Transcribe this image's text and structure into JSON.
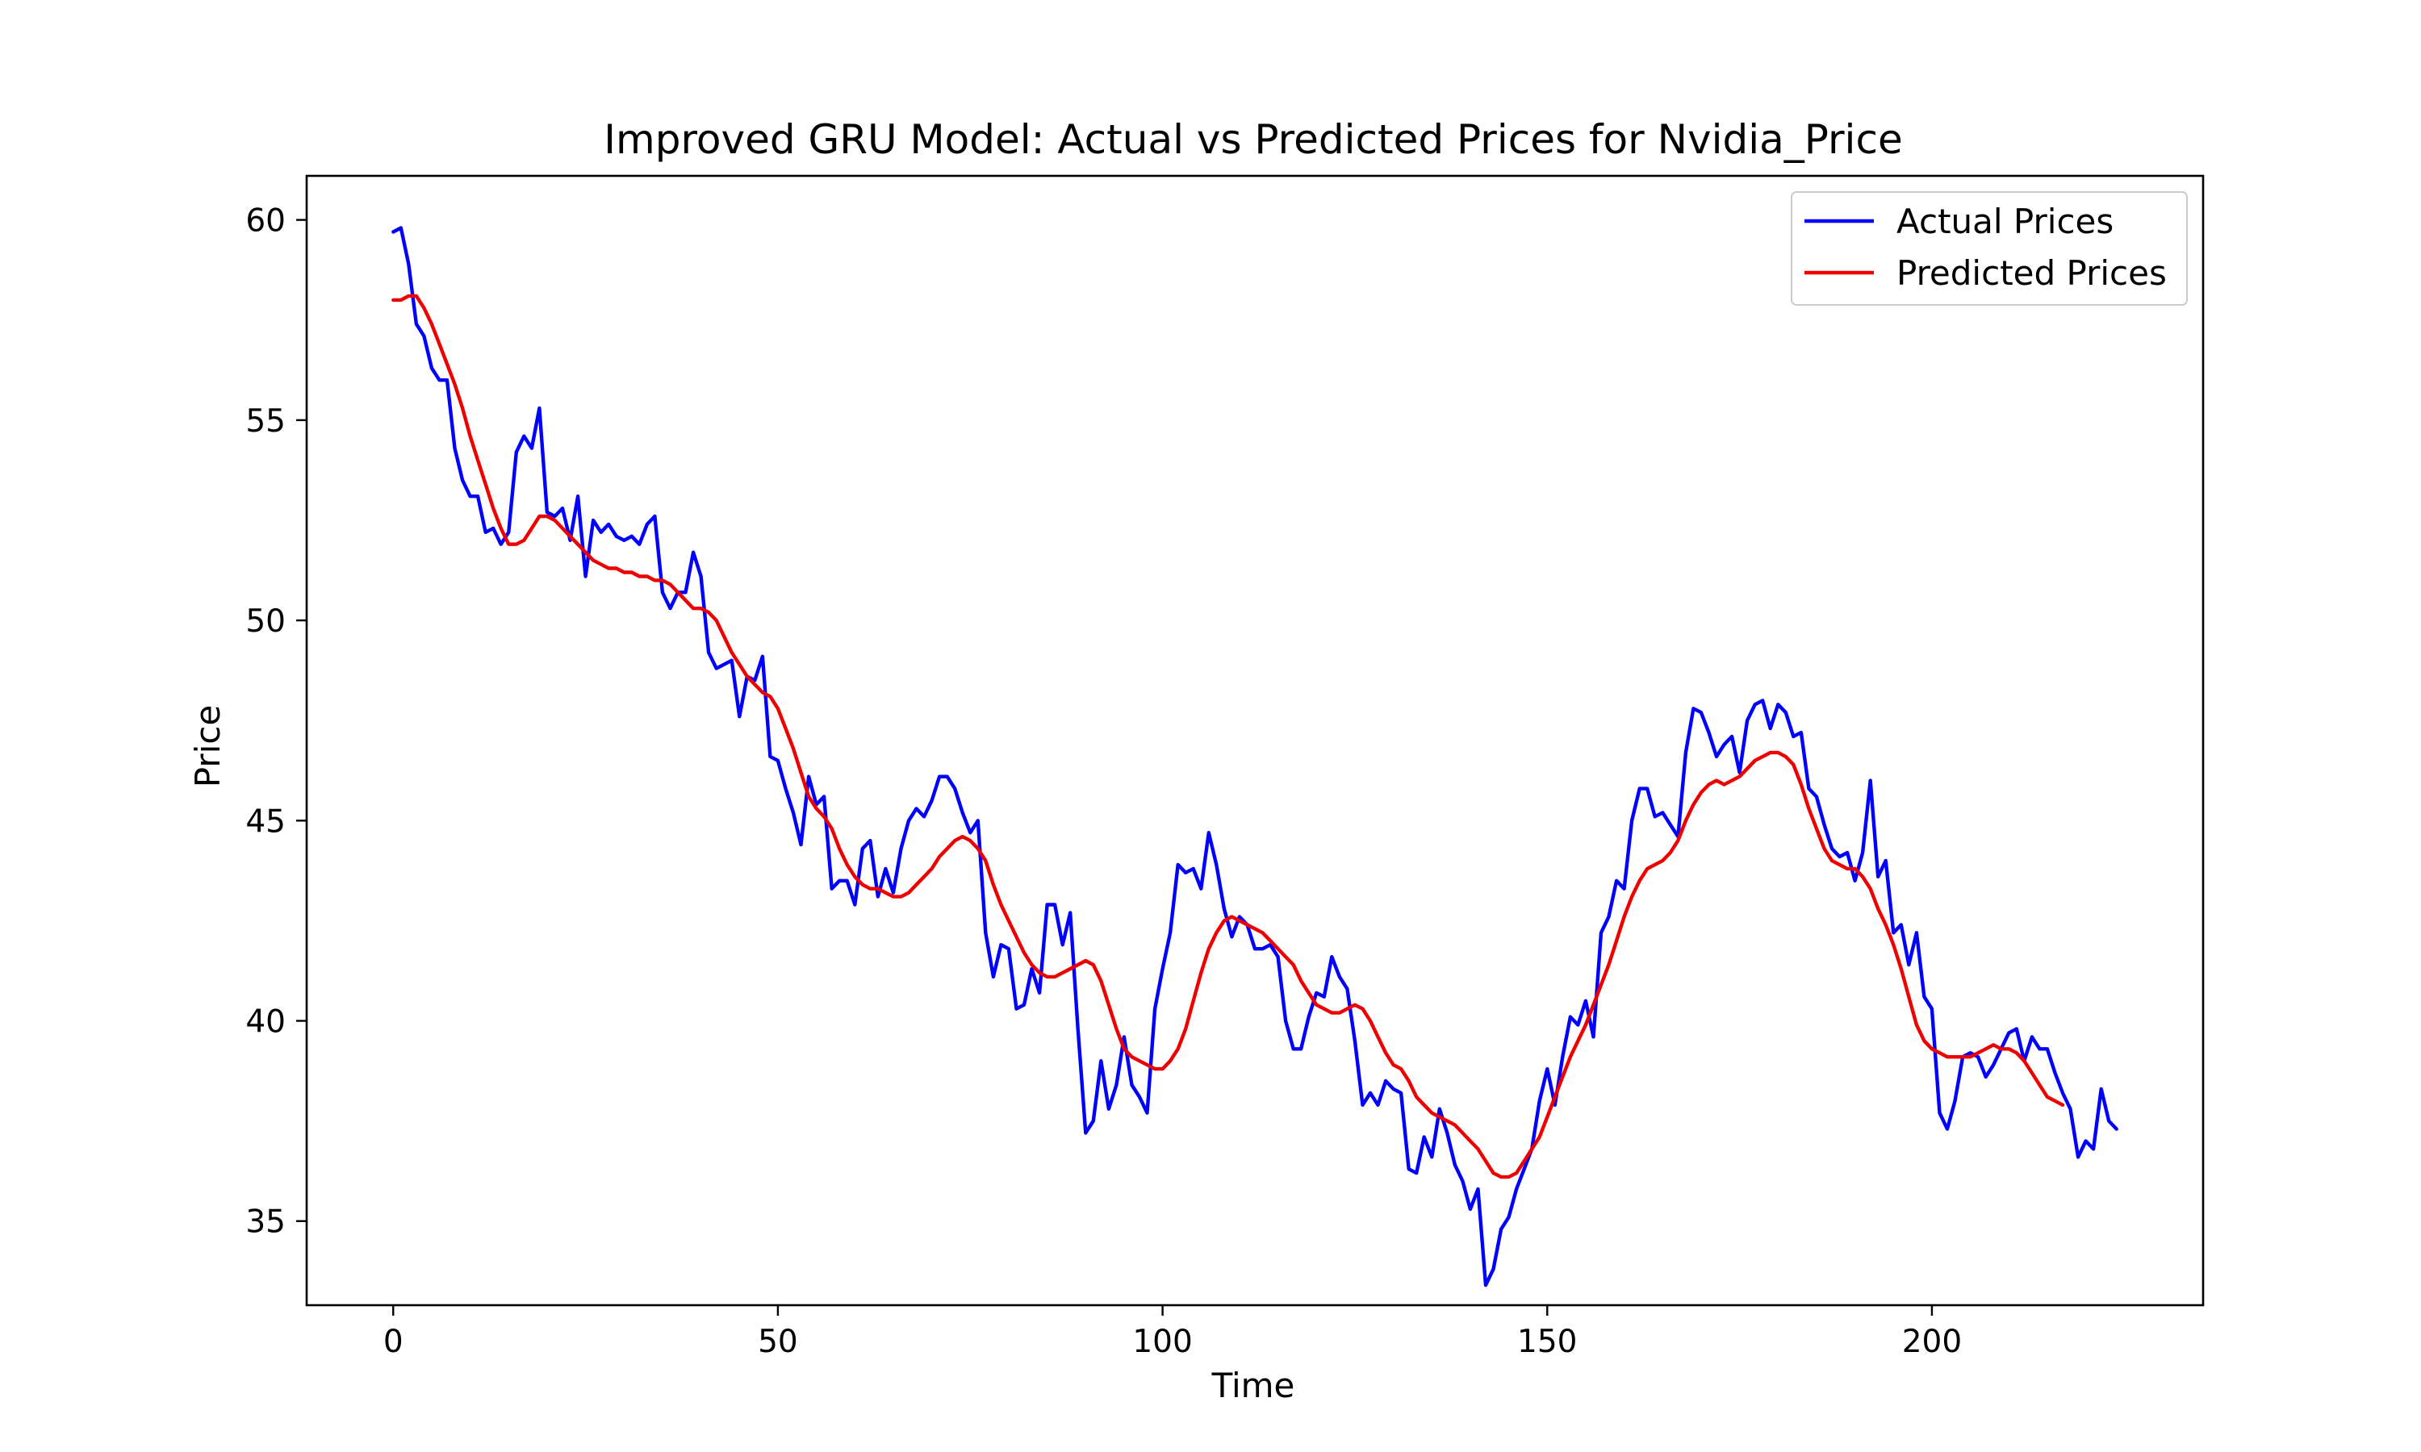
{
  "chart_data": {
    "type": "line",
    "title": "Improved GRU Model: Actual vs Predicted Prices for Nvidia_Price",
    "xlabel": "Time",
    "ylabel": "Price",
    "xlim": [
      -11.25,
      235.25
    ],
    "ylim": [
      32.9,
      61.1
    ],
    "xticks": [
      0,
      50,
      100,
      150,
      200
    ],
    "yticks": [
      35,
      40,
      45,
      50,
      55,
      60
    ],
    "legend_position": "upper-right",
    "grid": false,
    "series": [
      {
        "name": "Actual Prices",
        "color": "#0000ff",
        "values": [
          59.7,
          59.8,
          58.9,
          57.4,
          57.1,
          56.3,
          56.0,
          56.0,
          54.3,
          53.5,
          53.1,
          53.1,
          52.2,
          52.3,
          51.9,
          52.2,
          54.2,
          54.6,
          54.3,
          55.3,
          52.7,
          52.6,
          52.8,
          52.0,
          53.1,
          51.1,
          52.5,
          52.2,
          52.4,
          52.1,
          52.0,
          52.1,
          51.9,
          52.4,
          52.6,
          50.7,
          50.3,
          50.7,
          50.7,
          51.7,
          51.1,
          49.2,
          48.8,
          48.9,
          49.0,
          47.6,
          48.6,
          48.5,
          49.1,
          46.6,
          46.5,
          45.8,
          45.2,
          44.4,
          46.1,
          45.4,
          45.6,
          43.3,
          43.5,
          43.5,
          42.9,
          44.3,
          44.5,
          43.1,
          43.8,
          43.2,
          44.3,
          45.0,
          45.3,
          45.1,
          45.5,
          46.1,
          46.1,
          45.8,
          45.2,
          44.7,
          45.0,
          42.2,
          41.1,
          41.9,
          41.8,
          40.3,
          40.4,
          41.3,
          40.7,
          42.9,
          42.9,
          41.9,
          42.7,
          39.8,
          37.2,
          37.5,
          39.0,
          37.8,
          38.4,
          39.6,
          38.4,
          38.1,
          37.7,
          40.3,
          41.3,
          42.2,
          43.9,
          43.7,
          43.8,
          43.3,
          44.7,
          43.9,
          42.8,
          42.1,
          42.6,
          42.4,
          41.8,
          41.8,
          41.9,
          41.6,
          40.0,
          39.3,
          39.3,
          40.1,
          40.7,
          40.6,
          41.6,
          41.1,
          40.8,
          39.5,
          37.9,
          38.2,
          37.9,
          38.5,
          38.3,
          38.2,
          36.3,
          36.2,
          37.1,
          36.6,
          37.8,
          37.2,
          36.4,
          36.0,
          35.3,
          35.8,
          33.4,
          33.8,
          34.8,
          35.1,
          35.8,
          36.3,
          36.8,
          38.0,
          38.8,
          37.9,
          39.1,
          40.1,
          39.9,
          40.5,
          39.6,
          42.2,
          42.6,
          43.5,
          43.3,
          45.0,
          45.8,
          45.8,
          45.1,
          45.2,
          44.9,
          44.6,
          46.7,
          47.8,
          47.7,
          47.2,
          46.6,
          46.9,
          47.1,
          46.2,
          47.5,
          47.9,
          48.0,
          47.3,
          47.9,
          47.7,
          47.1,
          47.2,
          45.8,
          45.6,
          44.9,
          44.3,
          44.1,
          44.2,
          43.5,
          44.2,
          46.0,
          43.6,
          44.0,
          42.2,
          42.4,
          41.4,
          42.2,
          40.6,
          40.3,
          37.7,
          37.3,
          38.0,
          39.1,
          39.2,
          39.1,
          38.6,
          38.9,
          39.3,
          39.7,
          39.8,
          39.0,
          39.6,
          39.3,
          39.3,
          38.7,
          38.2,
          37.8,
          36.6,
          37.0,
          36.8,
          38.3,
          37.5,
          37.3
        ]
      },
      {
        "name": "Predicted Prices",
        "color": "#ee0000",
        "values": [
          58.0,
          58.0,
          58.1,
          58.1,
          57.8,
          57.4,
          56.9,
          56.4,
          55.9,
          55.3,
          54.6,
          54.0,
          53.4,
          52.8,
          52.3,
          51.9,
          51.9,
          52.0,
          52.3,
          52.6,
          52.6,
          52.5,
          52.3,
          52.1,
          51.9,
          51.7,
          51.5,
          51.4,
          51.3,
          51.3,
          51.2,
          51.2,
          51.1,
          51.1,
          51.0,
          51.0,
          50.9,
          50.7,
          50.5,
          50.3,
          50.3,
          50.2,
          50.0,
          49.6,
          49.2,
          48.9,
          48.6,
          48.4,
          48.2,
          48.1,
          47.8,
          47.3,
          46.8,
          46.2,
          45.6,
          45.3,
          45.1,
          44.8,
          44.3,
          43.9,
          43.6,
          43.4,
          43.3,
          43.3,
          43.2,
          43.1,
          43.1,
          43.2,
          43.4,
          43.6,
          43.8,
          44.1,
          44.3,
          44.5,
          44.6,
          44.5,
          44.3,
          44.0,
          43.4,
          42.9,
          42.5,
          42.1,
          41.7,
          41.4,
          41.2,
          41.1,
          41.1,
          41.2,
          41.3,
          41.4,
          41.5,
          41.4,
          41.0,
          40.4,
          39.8,
          39.3,
          39.1,
          39.0,
          38.9,
          38.8,
          38.8,
          39.0,
          39.3,
          39.8,
          40.5,
          41.2,
          41.8,
          42.2,
          42.5,
          42.6,
          42.5,
          42.4,
          42.3,
          42.2,
          42.0,
          41.8,
          41.6,
          41.4,
          41.0,
          40.7,
          40.4,
          40.3,
          40.2,
          40.2,
          40.3,
          40.4,
          40.3,
          40.0,
          39.6,
          39.2,
          38.9,
          38.8,
          38.5,
          38.1,
          37.9,
          37.7,
          37.6,
          37.5,
          37.4,
          37.2,
          37.0,
          36.8,
          36.5,
          36.2,
          36.1,
          36.1,
          36.2,
          36.5,
          36.8,
          37.1,
          37.6,
          38.1,
          38.6,
          39.1,
          39.5,
          39.9,
          40.4,
          40.9,
          41.4,
          42.0,
          42.6,
          43.1,
          43.5,
          43.8,
          43.9,
          44.0,
          44.2,
          44.5,
          45.0,
          45.4,
          45.7,
          45.9,
          46.0,
          45.9,
          46.0,
          46.1,
          46.3,
          46.5,
          46.6,
          46.7,
          46.7,
          46.6,
          46.4,
          45.9,
          45.3,
          44.8,
          44.3,
          44.0,
          43.9,
          43.8,
          43.8,
          43.6,
          43.3,
          42.8,
          42.4,
          41.9,
          41.3,
          40.6,
          39.9,
          39.5,
          39.3,
          39.2,
          39.1,
          39.1,
          39.1,
          39.1,
          39.2,
          39.3,
          39.4,
          39.3,
          39.3,
          39.2,
          39.0,
          38.7,
          38.4,
          38.1,
          38.0,
          37.9
        ]
      }
    ]
  }
}
